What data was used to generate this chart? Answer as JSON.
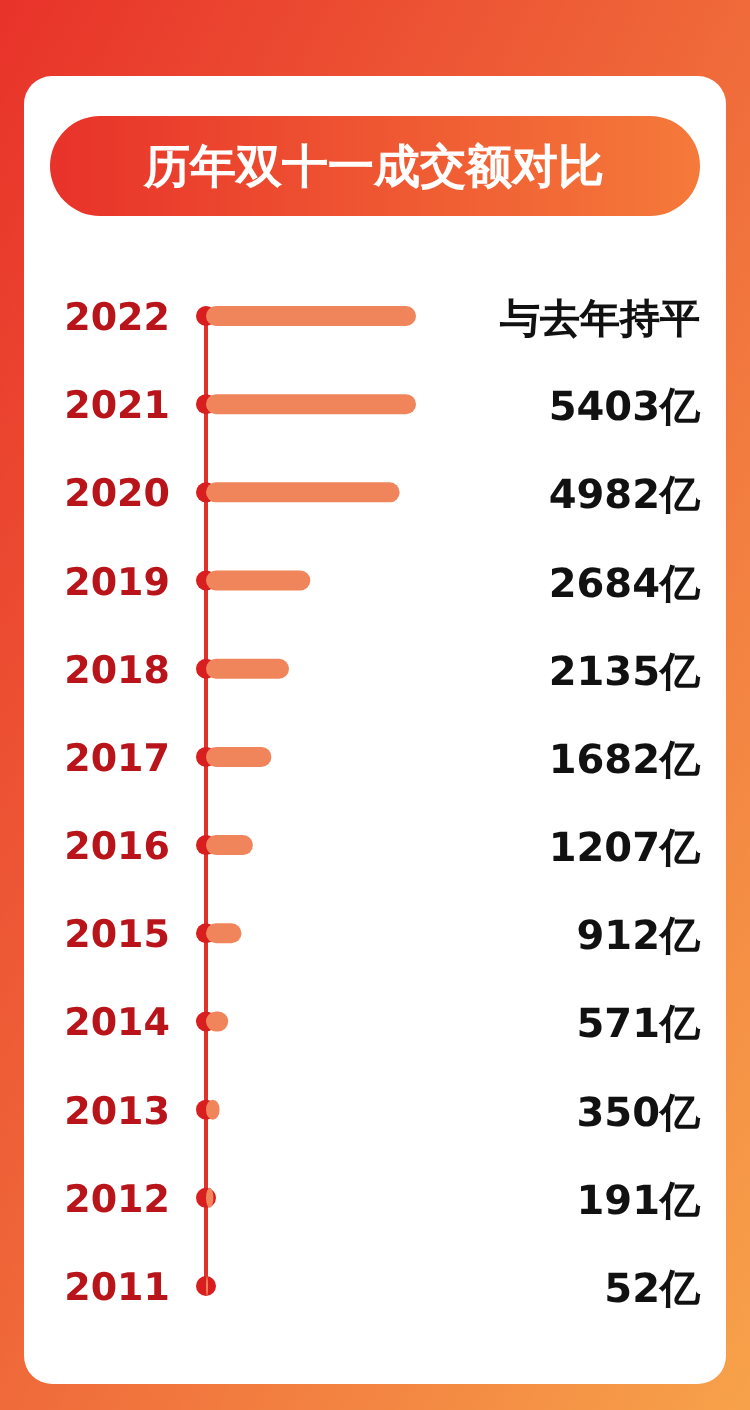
{
  "chart_data": {
    "type": "bar",
    "orientation": "horizontal",
    "title": "历年双十一成交额对比",
    "categories": [
      "2022",
      "2021",
      "2020",
      "2019",
      "2018",
      "2017",
      "2016",
      "2015",
      "2014",
      "2013",
      "2012",
      "2011"
    ],
    "series": [
      {
        "color": "#f0845a",
        "values": [
          5403,
          5403,
          4982,
          2684,
          2135,
          1682,
          1207,
          912,
          571,
          350,
          191,
          52
        ],
        "value_labels": [
          "与去年持平",
          "5403亿",
          "4982亿",
          "2684亿",
          "2135亿",
          "1682亿",
          "1207亿",
          "912亿",
          "571亿",
          "350亿",
          "191亿",
          "52亿"
        ]
      },
      {
        "type": "scatter",
        "color": "#d81e1e",
        "marker": "circle",
        "values": [
          0,
          0,
          0,
          0,
          0,
          0,
          0,
          0,
          0,
          0,
          0,
          0
        ]
      }
    ]
  }
}
